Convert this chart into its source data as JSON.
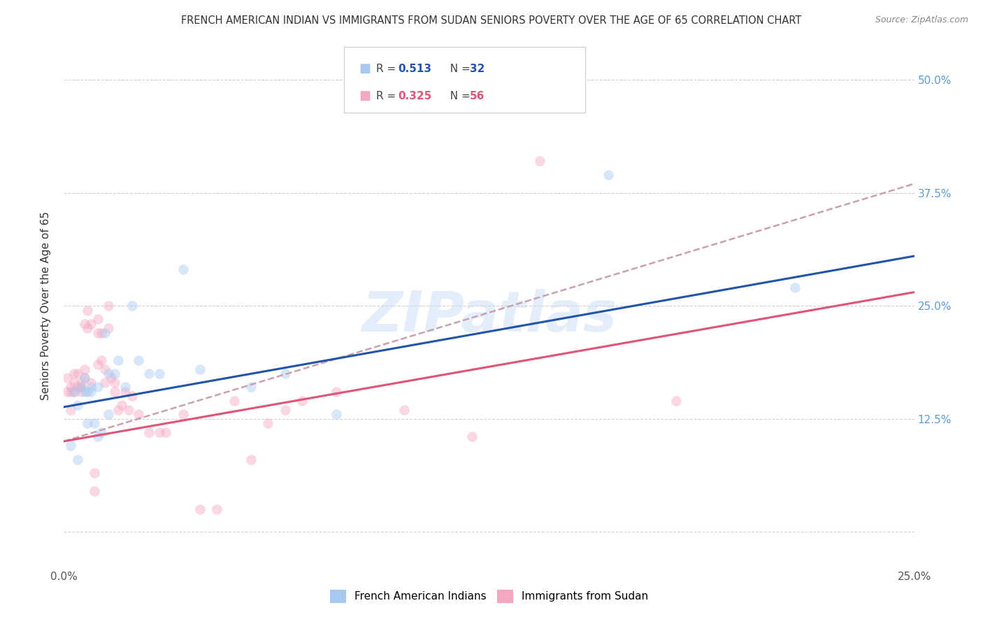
{
  "title": "FRENCH AMERICAN INDIAN VS IMMIGRANTS FROM SUDAN SENIORS POVERTY OVER THE AGE OF 65 CORRELATION CHART",
  "source": "Source: ZipAtlas.com",
  "ylabel": "Seniors Poverty Over the Age of 65",
  "ytick_labels": [
    "",
    "12.5%",
    "25.0%",
    "37.5%",
    "50.0%"
  ],
  "ytick_values": [
    0.0,
    0.125,
    0.25,
    0.375,
    0.5
  ],
  "xmin": 0.0,
  "xmax": 0.25,
  "ymin": -0.04,
  "ymax": 0.54,
  "watermark": "ZIPatlas",
  "legend_blue_label": "French American Indians",
  "legend_pink_label": "Immigrants from Sudan",
  "blue_scatter_x": [
    0.002,
    0.003,
    0.004,
    0.005,
    0.006,
    0.006,
    0.007,
    0.007,
    0.008,
    0.008,
    0.009,
    0.01,
    0.01,
    0.011,
    0.012,
    0.013,
    0.013,
    0.015,
    0.016,
    0.018,
    0.02,
    0.022,
    0.025,
    0.028,
    0.035,
    0.04,
    0.055,
    0.065,
    0.08,
    0.16,
    0.215,
    0.004
  ],
  "blue_scatter_y": [
    0.095,
    0.155,
    0.14,
    0.16,
    0.155,
    0.17,
    0.155,
    0.12,
    0.155,
    0.16,
    0.12,
    0.16,
    0.105,
    0.11,
    0.22,
    0.175,
    0.13,
    0.175,
    0.19,
    0.16,
    0.25,
    0.19,
    0.175,
    0.175,
    0.29,
    0.18,
    0.16,
    0.175,
    0.13,
    0.395,
    0.27,
    0.08
  ],
  "pink_scatter_x": [
    0.001,
    0.001,
    0.002,
    0.002,
    0.002,
    0.003,
    0.003,
    0.003,
    0.004,
    0.004,
    0.005,
    0.005,
    0.005,
    0.006,
    0.006,
    0.006,
    0.007,
    0.007,
    0.008,
    0.008,
    0.009,
    0.009,
    0.01,
    0.01,
    0.01,
    0.011,
    0.011,
    0.012,
    0.012,
    0.013,
    0.013,
    0.014,
    0.015,
    0.015,
    0.016,
    0.017,
    0.018,
    0.019,
    0.02,
    0.022,
    0.025,
    0.028,
    0.03,
    0.035,
    0.04,
    0.045,
    0.05,
    0.055,
    0.06,
    0.065,
    0.07,
    0.08,
    0.1,
    0.12,
    0.14,
    0.18
  ],
  "pink_scatter_y": [
    0.155,
    0.17,
    0.16,
    0.155,
    0.135,
    0.165,
    0.155,
    0.175,
    0.16,
    0.175,
    0.16,
    0.165,
    0.155,
    0.17,
    0.18,
    0.23,
    0.225,
    0.245,
    0.23,
    0.165,
    0.065,
    0.045,
    0.185,
    0.235,
    0.22,
    0.22,
    0.19,
    0.165,
    0.18,
    0.25,
    0.225,
    0.17,
    0.155,
    0.165,
    0.135,
    0.14,
    0.155,
    0.135,
    0.15,
    0.13,
    0.11,
    0.11,
    0.11,
    0.13,
    0.025,
    0.025,
    0.145,
    0.08,
    0.12,
    0.135,
    0.145,
    0.155,
    0.135,
    0.105,
    0.41,
    0.145
  ],
  "blue_line_x": [
    0.0,
    0.25
  ],
  "blue_line_y": [
    0.138,
    0.305
  ],
  "pink_line_x": [
    0.0,
    0.25
  ],
  "pink_line_y": [
    0.1,
    0.265
  ],
  "dash_line_x": [
    0.0,
    0.25
  ],
  "dash_line_y": [
    0.1,
    0.385
  ],
  "scatter_size": 110,
  "scatter_alpha": 0.45,
  "blue_color": "#a8c8f0",
  "pink_color": "#f4a8c0",
  "blue_line_color": "#2255aa",
  "pink_line_color": "#e05575",
  "dash_line_color": "#c8a0b0",
  "bg_color": "#ffffff",
  "grid_color": "#cccccc",
  "title_color": "#333333",
  "right_label_color": "#5b9bd5",
  "title_fontsize": 10.5,
  "source_fontsize": 9
}
